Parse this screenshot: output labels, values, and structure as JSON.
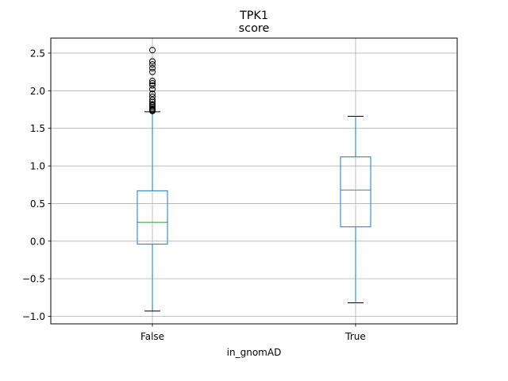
{
  "chart_data": {
    "type": "box",
    "suptitle": "TPK1",
    "title": "score",
    "xlabel": "in_gnomAD",
    "ylabel": "",
    "categories": [
      "False",
      "True"
    ],
    "ylim": [
      -1.1,
      2.7
    ],
    "yticks": [
      -1.0,
      -0.5,
      0.0,
      0.5,
      1.0,
      1.5,
      2.0,
      2.5
    ],
    "ytick_labels": [
      "−1.0",
      "−0.5",
      "0.0",
      "0.5",
      "1.0",
      "1.5",
      "2.0",
      "2.5"
    ],
    "grid": true,
    "box_color": "#1f77b4",
    "median_color": "#2ca02c",
    "boxes": [
      {
        "name": "False",
        "whisker_low": -0.93,
        "q1": -0.04,
        "median": 0.25,
        "q3": 0.67,
        "whisker_high": 1.72,
        "outliers": [
          1.73,
          1.74,
          1.75,
          1.76,
          1.78,
          1.8,
          1.82,
          1.85,
          1.88,
          1.92,
          1.96,
          2.02,
          2.07,
          2.1,
          2.13,
          2.25,
          2.3,
          2.35,
          2.39,
          2.54
        ]
      },
      {
        "name": "True",
        "whisker_low": -0.82,
        "q1": 0.19,
        "median": 0.68,
        "q3": 1.12,
        "whisker_high": 1.66,
        "outliers": []
      }
    ]
  }
}
